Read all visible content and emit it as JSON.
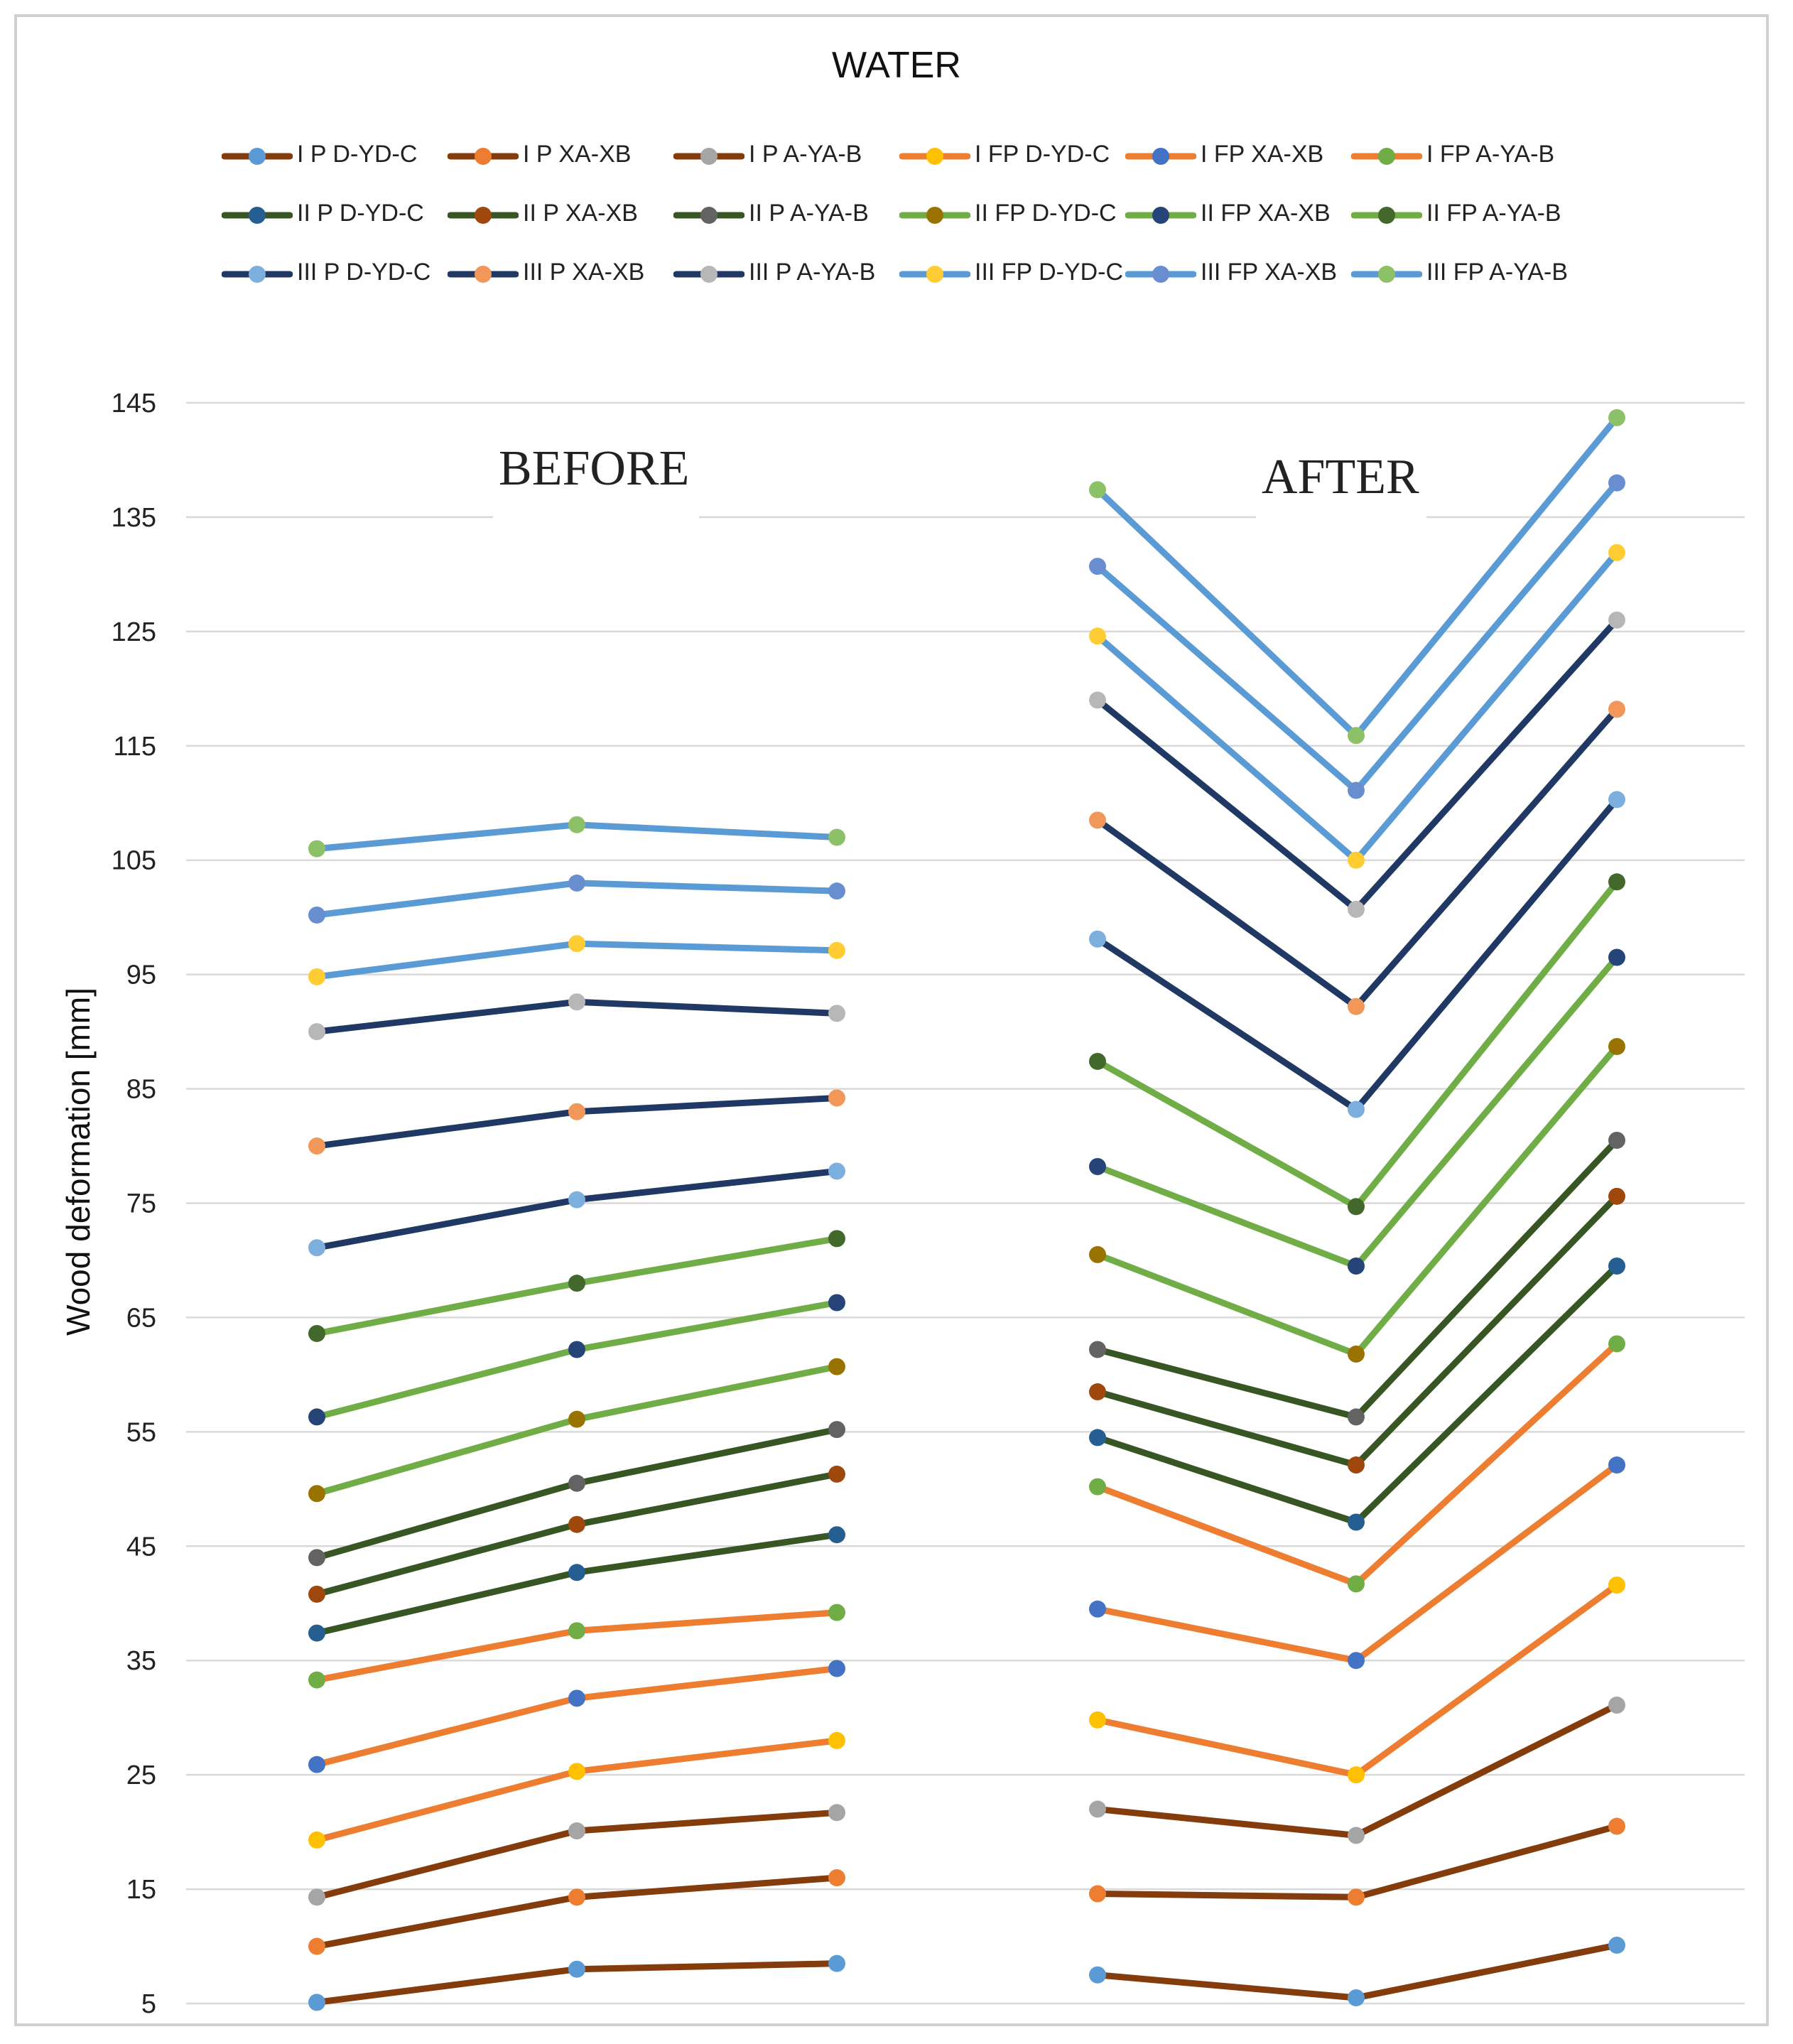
{
  "chart_data": {
    "type": "line",
    "title": "WATER",
    "ylabel": "Wood deformation [mm]",
    "xlabel": "",
    "ylim": [
      5,
      145
    ],
    "yticks": [
      5,
      15,
      25,
      35,
      45,
      55,
      65,
      75,
      85,
      95,
      105,
      115,
      125,
      135,
      145
    ],
    "grid": true,
    "legend_position": "top",
    "groups": [
      {
        "label": "BEFORE",
        "points": 3
      },
      {
        "label": "AFTER",
        "points": 3
      }
    ],
    "series": [
      {
        "name": "I P D-YD-C",
        "line_color": "#843C0C",
        "marker_color": "#5B9BD5",
        "values": [
          5.1,
          8.0,
          8.5,
          7.5,
          5.5,
          10.1
        ]
      },
      {
        "name": "I P XA-XB",
        "line_color": "#843C0C",
        "marker_color": "#ED7D31",
        "values": [
          10.0,
          14.3,
          16.0,
          14.6,
          14.3,
          20.5
        ]
      },
      {
        "name": "I P A-YA-B",
        "line_color": "#843C0C",
        "marker_color": "#A5A5A5",
        "values": [
          14.3,
          20.1,
          21.7,
          22.0,
          19.7,
          31.1
        ]
      },
      {
        "name": "I FP D-YD-C",
        "line_color": "#ED7D31",
        "marker_color": "#FFC000",
        "values": [
          19.3,
          25.3,
          28.0,
          29.8,
          25.0,
          41.6
        ]
      },
      {
        "name": "I FP XA-XB",
        "line_color": "#ED7D31",
        "marker_color": "#4472C4",
        "values": [
          25.9,
          31.7,
          34.3,
          39.5,
          35.0,
          52.1
        ]
      },
      {
        "name": "I FP A-YA-B",
        "line_color": "#ED7D31",
        "marker_color": "#70AD47",
        "values": [
          33.3,
          37.6,
          39.2,
          50.2,
          41.7,
          62.7
        ]
      },
      {
        "name": "II P D-YD-C",
        "line_color": "#375623",
        "marker_color": "#255E91",
        "values": [
          37.4,
          42.7,
          46.0,
          54.5,
          47.1,
          69.5
        ]
      },
      {
        "name": "II P XA-XB",
        "line_color": "#375623",
        "marker_color": "#9E480E",
        "values": [
          40.8,
          46.9,
          51.3,
          58.5,
          52.1,
          75.6
        ]
      },
      {
        "name": "II P A-YA-B",
        "line_color": "#375623",
        "marker_color": "#636363",
        "values": [
          44.0,
          50.5,
          55.2,
          62.2,
          56.3,
          80.5
        ]
      },
      {
        "name": "II FP D-YD-C",
        "line_color": "#70AD47",
        "marker_color": "#997300",
        "values": [
          49.6,
          56.1,
          60.7,
          70.5,
          61.8,
          88.7
        ]
      },
      {
        "name": "II FP XA-XB",
        "line_color": "#70AD47",
        "marker_color": "#264478",
        "values": [
          56.3,
          62.2,
          66.3,
          78.2,
          69.5,
          96.5
        ]
      },
      {
        "name": "II FP A-YA-B",
        "line_color": "#70AD47",
        "marker_color": "#43682B",
        "values": [
          63.6,
          68.0,
          71.9,
          87.4,
          74.7,
          103.1
        ]
      },
      {
        "name": "III P D-YD-C",
        "line_color": "#203864",
        "marker_color": "#7CAFDD",
        "values": [
          71.1,
          75.3,
          77.8,
          98.1,
          83.2,
          110.3
        ]
      },
      {
        "name": "III P XA-XB",
        "line_color": "#203864",
        "marker_color": "#F1975A",
        "values": [
          80.0,
          83.0,
          84.2,
          108.5,
          92.2,
          118.2
        ]
      },
      {
        "name": "III P A-YA-B",
        "line_color": "#203864",
        "marker_color": "#B7B7B7",
        "values": [
          90.0,
          92.6,
          91.6,
          119.0,
          100.7,
          126.0
        ]
      },
      {
        "name": "III FP D-YD-C",
        "line_color": "#5B9BD5",
        "marker_color": "#FFCD33",
        "values": [
          94.8,
          97.7,
          97.1,
          124.6,
          105.0,
          131.9
        ]
      },
      {
        "name": "III FP XA-XB",
        "line_color": "#5B9BD5",
        "marker_color": "#698ED0",
        "values": [
          100.2,
          103.0,
          102.3,
          130.7,
          111.1,
          138.0
        ]
      },
      {
        "name": "III FP A-YA-B",
        "line_color": "#5B9BD5",
        "marker_color": "#8CC168",
        "values": [
          106.0,
          108.1,
          107.0,
          137.4,
          115.9,
          143.7
        ]
      }
    ]
  }
}
